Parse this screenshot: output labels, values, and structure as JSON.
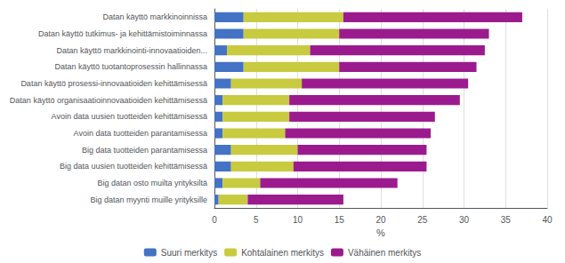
{
  "chart_data": {
    "type": "bar",
    "orientation": "horizontal",
    "stacked": true,
    "categories": [
      "Big datan myynti muille yrityksille",
      "Big datan osto muilta yrityksiltä",
      "Big data uusien tuotteiden kehittämisessä",
      "Big data tuotteiden parantamisessa",
      "Avoin data tuotteiden parantamisessa",
      "Avoin data uusien tuotteiden kehittämisessä",
      "Datan käyttö organisaatioinnovaatioiden kehittämisessä",
      "Datan käyttö prosessi-innovaatioiden kehittämisessä",
      "Datan käyttö tuotantoprosessin hallinnassa",
      "Datan käyttö markkinointi-innovaatioiden...",
      "Datan käyttö tutkimus- ja kehittämistoiminnassa",
      "Datan käyttö markkinoinnissa"
    ],
    "series": [
      {
        "name": "Suuri merkitys",
        "color": "#4472c4",
        "values": [
          0.5,
          1.0,
          2.0,
          2.0,
          1.0,
          1.0,
          1.0,
          2.0,
          3.5,
          1.5,
          3.5,
          3.5
        ]
      },
      {
        "name": "Kohtalainen merkitys",
        "color": "#c8ca3f",
        "values": [
          3.5,
          4.5,
          7.5,
          8.0,
          7.5,
          8.0,
          8.0,
          8.5,
          11.5,
          10.0,
          11.5,
          12.0
        ]
      },
      {
        "name": "Vähäinen merkitys",
        "color": "#9b1b8e",
        "values": [
          11.5,
          16.5,
          16.0,
          15.5,
          17.5,
          17.5,
          20.5,
          20.0,
          16.5,
          21.0,
          18.0,
          21.5
        ]
      }
    ],
    "xlabel": "%",
    "xlim": [
      0,
      40
    ],
    "xticks": [
      0,
      5,
      10,
      15,
      20,
      25,
      30,
      35,
      40
    ],
    "grid": true,
    "legend": "bottom"
  }
}
